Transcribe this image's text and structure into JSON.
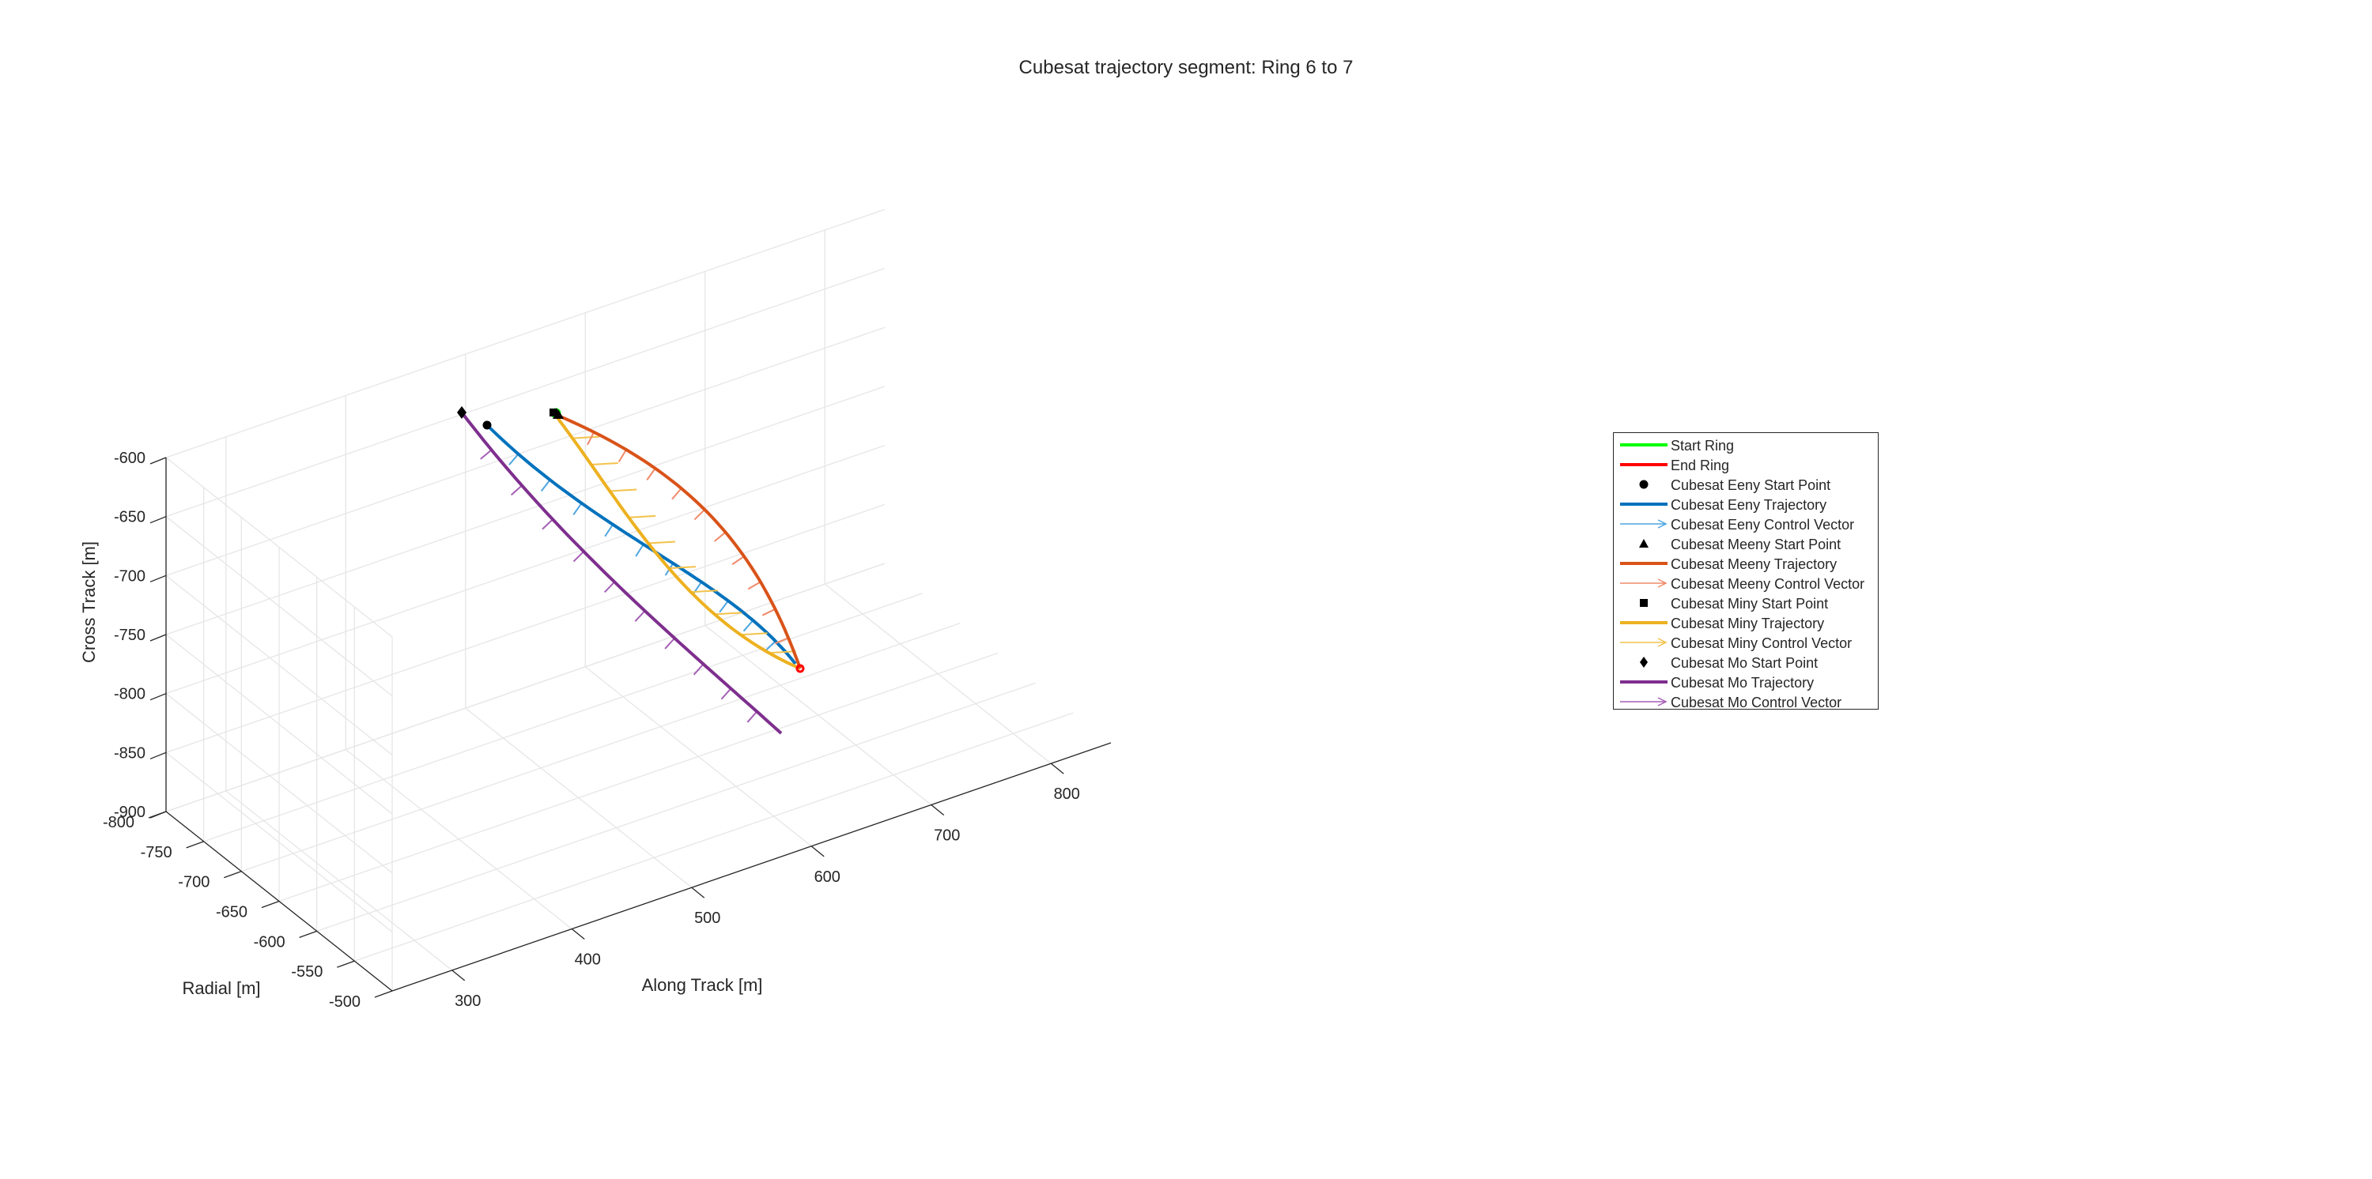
{
  "chart_data": {
    "type": "line",
    "title": "Cubesat trajectory segment: Ring 6 to 7",
    "xlabel": "Along Track [m]",
    "ylabel": "Radial [m]",
    "zlabel": "Cross Track [m]",
    "xlim": [
      250,
      850
    ],
    "ylim": [
      -800,
      -500
    ],
    "zlim": [
      -900,
      -600
    ],
    "x_ticks": [
      "300",
      "400",
      "500",
      "600",
      "700",
      "800"
    ],
    "y_ticks": [
      "-800",
      "-750",
      "-700",
      "-650",
      "-600",
      "-550",
      "-500"
    ],
    "z_ticks": [
      "-600",
      "-650",
      "-700",
      "-750",
      "-800",
      "-850",
      "-900"
    ],
    "grid": true,
    "legend_position": "east",
    "series": [
      {
        "name": "Start Ring",
        "color": "#00ff00",
        "style": "line"
      },
      {
        "name": "End Ring",
        "color": "#ff0000",
        "style": "line"
      },
      {
        "name": "Cubesat Eeny Start Point",
        "color": "#000000",
        "style": "marker",
        "marker": "circle"
      },
      {
        "name": "Cubesat Eeny Trajectory",
        "color": "#0072bd",
        "style": "line"
      },
      {
        "name": "Cubesat Eeny Control Vector",
        "color": "#4da6e0",
        "style": "arrow"
      },
      {
        "name": "Cubesat Meeny Start Point",
        "color": "#000000",
        "style": "marker",
        "marker": "triangle"
      },
      {
        "name": "Cubesat Meeny Trajectory",
        "color": "#d95319",
        "style": "line"
      },
      {
        "name": "Cubesat Meeny Control Vector",
        "color": "#f08a6a",
        "style": "arrow"
      },
      {
        "name": "Cubesat Miny Start Point",
        "color": "#000000",
        "style": "marker",
        "marker": "square"
      },
      {
        "name": "Cubesat Miny Trajectory",
        "color": "#edb120",
        "style": "line"
      },
      {
        "name": "Cubesat Miny Control Vector",
        "color": "#f2c24a",
        "style": "arrow"
      },
      {
        "name": "Cubesat Mo Start Point",
        "color": "#000000",
        "style": "marker",
        "marker": "diamond"
      },
      {
        "name": "Cubesat Mo Trajectory",
        "color": "#7e2f8e",
        "style": "line"
      },
      {
        "name": "Cubesat Mo Control Vector",
        "color": "#a55fb5",
        "style": "arrow"
      }
    ]
  }
}
